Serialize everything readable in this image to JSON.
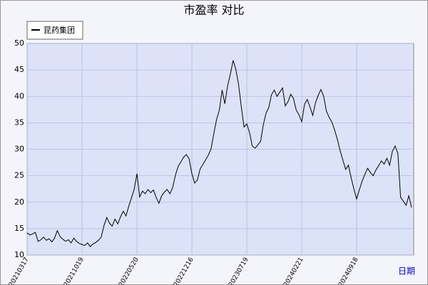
{
  "chart_data": {
    "type": "line",
    "title": "市盈率 对比",
    "x_label": "日期",
    "categories": [
      "20210317",
      null,
      null,
      null,
      null,
      null,
      null,
      null,
      null,
      null,
      null,
      null,
      null,
      null,
      null,
      null,
      null,
      null,
      null,
      null,
      "20211019",
      null,
      null,
      null,
      null,
      null,
      null,
      null,
      null,
      null,
      null,
      null,
      null,
      null,
      null,
      null,
      null,
      null,
      null,
      null,
      "20220520",
      null,
      null,
      null,
      null,
      null,
      null,
      null,
      null,
      null,
      null,
      null,
      null,
      null,
      null,
      null,
      null,
      null,
      null,
      null,
      "20221216",
      null,
      null,
      null,
      null,
      null,
      null,
      null,
      null,
      null,
      null,
      null,
      null,
      null,
      null,
      null,
      null,
      null,
      null,
      null,
      "20230719",
      null,
      null,
      null,
      null,
      null,
      null,
      null,
      null,
      null,
      null,
      null,
      null,
      null,
      null,
      null,
      null,
      null,
      null,
      null,
      "20240221",
      null,
      null,
      null,
      null,
      null,
      null,
      null,
      null,
      null,
      null,
      null,
      null,
      null,
      null,
      null,
      null,
      null,
      null,
      null,
      "20240918",
      null,
      null,
      null,
      null,
      null,
      null,
      null,
      null,
      null,
      null,
      null,
      null,
      null,
      null,
      null,
      null,
      null,
      null,
      null,
      null
    ],
    "series": [
      {
        "name": "昆药集团",
        "color": "#000000",
        "values": [
          14.2,
          13.8,
          14.0,
          14.3,
          12.6,
          12.9,
          13.4,
          12.8,
          13.1,
          12.5,
          13.2,
          14.6,
          13.5,
          13.0,
          12.6,
          12.9,
          12.3,
          13.2,
          12.6,
          12.2,
          12.0,
          11.8,
          12.3,
          11.6,
          12.1,
          12.4,
          12.8,
          13.4,
          15.6,
          17.1,
          16.0,
          15.5,
          16.8,
          15.9,
          17.2,
          18.3,
          17.4,
          19.2,
          20.8,
          22.5,
          25.4,
          21.0,
          22.1,
          21.6,
          22.4,
          21.8,
          22.3,
          20.9,
          19.8,
          21.2,
          21.9,
          22.4,
          21.6,
          22.8,
          25.1,
          26.8,
          27.6,
          28.5,
          29.0,
          28.2,
          25.4,
          23.6,
          24.2,
          26.3,
          27.1,
          28.0,
          28.9,
          30.1,
          33.0,
          35.6,
          37.4,
          41.2,
          38.6,
          42.0,
          44.2,
          46.8,
          45.1,
          42.3,
          38.0,
          34.2,
          34.8,
          33.1,
          30.6,
          30.2,
          30.8,
          31.5,
          34.6,
          36.8,
          37.9,
          40.3,
          41.2,
          40.0,
          40.8,
          41.6,
          38.2,
          39.0,
          40.4,
          39.6,
          37.4,
          36.5,
          35.2,
          38.5,
          39.4,
          38.0,
          36.4,
          38.8,
          40.2,
          41.3,
          40.0,
          37.2,
          36.0,
          35.1,
          33.6,
          31.8,
          29.7,
          27.9,
          26.2,
          27.0,
          24.6,
          22.5,
          20.6,
          22.4,
          24.0,
          25.3,
          26.4,
          25.6,
          25.0,
          26.1,
          26.9,
          27.8,
          27.2,
          28.3,
          27.0,
          29.6,
          30.6,
          29.2,
          20.9,
          20.2,
          19.4,
          21.2,
          19.0
        ]
      }
    ],
    "ylim": [
      10,
      50
    ],
    "yticks": [
      10,
      15,
      20,
      25,
      30,
      35,
      40,
      45,
      50
    ],
    "grid": true
  }
}
